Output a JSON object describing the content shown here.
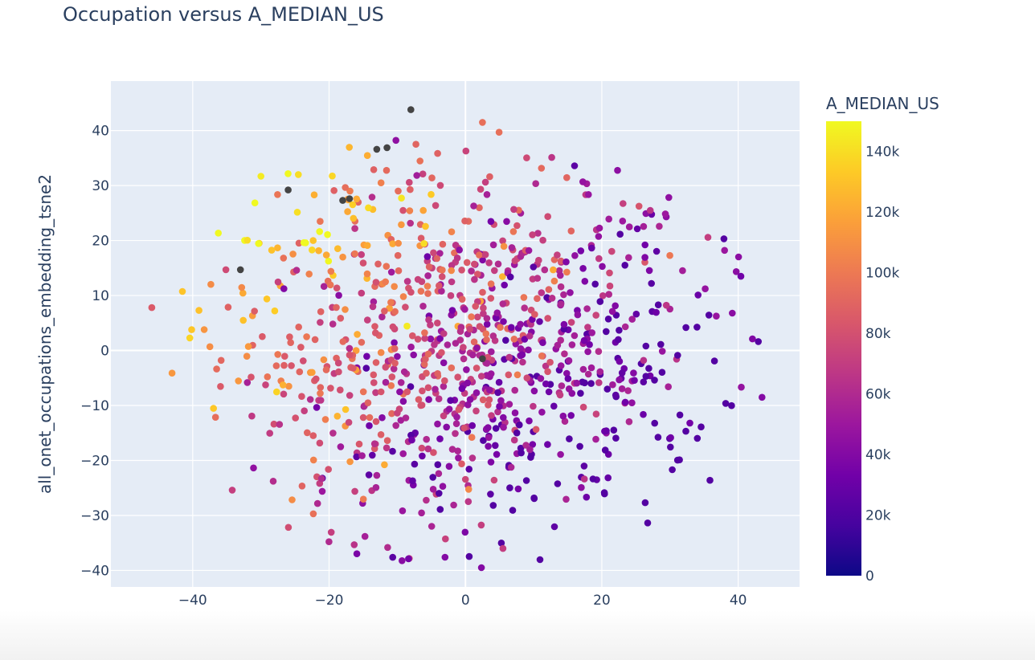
{
  "chart_data": {
    "type": "scatter",
    "title": "Occupation versus A_MEDIAN_US",
    "xlabel": "all_onet_occupations_embedding_tsne1",
    "ylabel": "all_onet_occupations_embedding_tsne2",
    "xlim": [
      -52,
      49
    ],
    "ylim": [
      -43,
      49
    ],
    "x_ticks": [
      -40,
      -20,
      0,
      20,
      40
    ],
    "x_tick_labels": [
      "−40",
      "−20",
      "0",
      "20",
      "40"
    ],
    "y_ticks": [
      40,
      30,
      20,
      10,
      0,
      -10,
      -20,
      -30,
      -40
    ],
    "y_tick_labels": [
      "40",
      "30",
      "20",
      "10",
      "0",
      "−10",
      "−20",
      "−30",
      "−40"
    ],
    "grid": true,
    "plot_background": "#e5ecf6",
    "colorbar": {
      "title": "A_MEDIAN_US",
      "range": [
        0,
        150000
      ],
      "ticks": [
        0,
        20000,
        40000,
        60000,
        80000,
        100000,
        120000,
        140000
      ],
      "tick_labels": [
        "0",
        "20k",
        "40k",
        "60k",
        "80k",
        "100k",
        "120k",
        "140k"
      ],
      "colorscale": [
        "#0d0887",
        "#46039f",
        "#7201a8",
        "#9c179e",
        "#bd3786",
        "#d8576b",
        "#ed7953",
        "#fb9f3a",
        "#fdca26",
        "#f0f921"
      ]
    },
    "missing_value_color": "#444444",
    "point_count": 1000,
    "points_sample": [
      {
        "x": -8,
        "y": 43.8,
        "v": null
      },
      {
        "x": -11.5,
        "y": 36.9,
        "v": null
      },
      {
        "x": -13,
        "y": 36.6,
        "v": null
      },
      {
        "x": -26,
        "y": 29.2,
        "v": null
      },
      {
        "x": -18,
        "y": 27.3,
        "v": null
      },
      {
        "x": -17,
        "y": 27.6,
        "v": null
      },
      {
        "x": -33,
        "y": 14.7,
        "v": null
      },
      {
        "x": 2.5,
        "y": -1.5,
        "v": null
      },
      {
        "x": 2.5,
        "y": 41.5,
        "v": 95000
      },
      {
        "x": -30,
        "y": 31.7,
        "v": 145000
      },
      {
        "x": -24.5,
        "y": 32,
        "v": 140000
      },
      {
        "x": 16,
        "y": 33.6,
        "v": 25000
      },
      {
        "x": 43.5,
        "y": -8.5,
        "v": 40000
      },
      {
        "x": -46,
        "y": 7.8,
        "v": 85000
      },
      {
        "x": -3,
        "y": -37.6,
        "v": 40000
      },
      {
        "x": 5.5,
        "y": -36,
        "v": 70000
      }
    ]
  }
}
